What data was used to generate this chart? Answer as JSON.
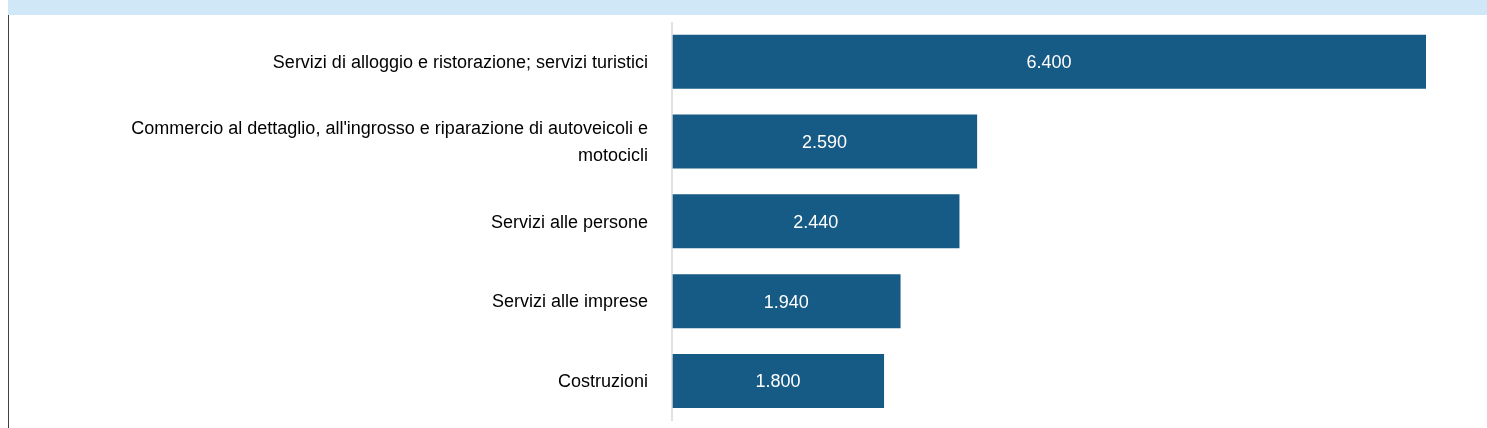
{
  "chart_data": {
    "type": "bar",
    "orientation": "horizontal",
    "categories": [
      "Servizi di alloggio e ristorazione; servizi turistici",
      "Commercio al dettaglio, all'ingrosso e riparazione di autoveicoli e motocicli",
      "Servizi alle persone",
      "Servizi alle imprese",
      "Costruzioni"
    ],
    "values": [
      6400,
      2590,
      2440,
      1940,
      1800
    ],
    "color": "#165a86",
    "value_labels": [
      "6.400",
      "2.590",
      "2.440",
      "1.940",
      "1.800"
    ],
    "tick_labels": "y"
  }
}
